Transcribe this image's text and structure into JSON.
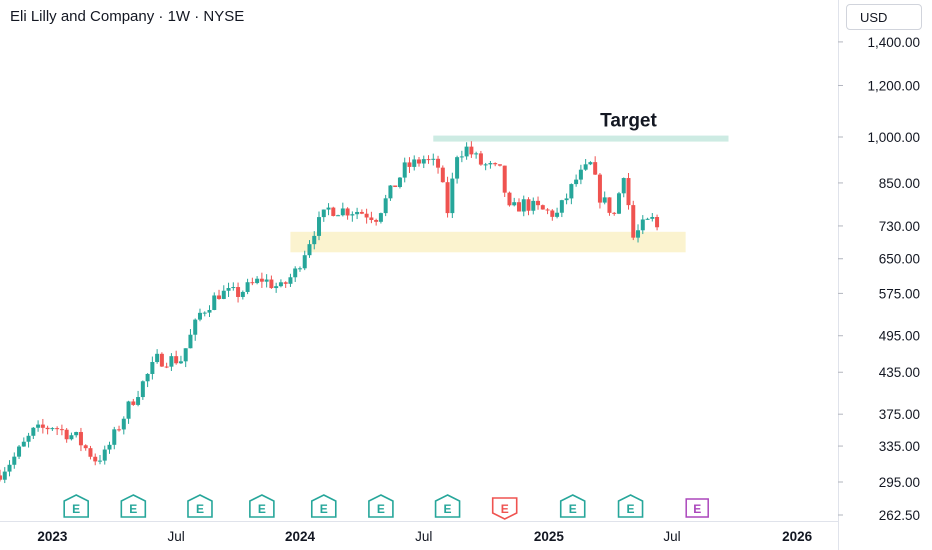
{
  "header": {
    "title": "Eli Lilly and Company · 1W · NYSE",
    "currency": "USD"
  },
  "annotation": {
    "target_label": "Target"
  },
  "colors": {
    "up": "#26a69a",
    "down": "#ef5350",
    "target_zone": "#cdebe3",
    "support_zone": "#fbf3cf",
    "earnings_up": "#26a69a",
    "earnings_down": "#ef5350",
    "earnings_future": "#ab47bc"
  },
  "chart_data": {
    "type": "candlestick",
    "title": "Eli Lilly and Company · 1W · NYSE",
    "y_scale": "log",
    "ylim": [
      250,
      1600
    ],
    "y_ticks": [
      1400,
      1200,
      1000,
      850,
      730,
      650,
      575,
      495,
      435,
      375,
      335,
      295,
      262.5
    ],
    "y_tick_labels": [
      "1,400.00",
      "1,200.00",
      "1,000.00",
      "850.00",
      "730.00",
      "650.00",
      "575.00",
      "495.00",
      "435.00",
      "375.00",
      "335.00",
      "295.00",
      "262.50"
    ],
    "x_ticks": [
      "2023",
      "Jul",
      "2024",
      "Jul",
      "2025",
      "Jul",
      "2026"
    ],
    "x_range": [
      "2022-10-17",
      "2026-03-02"
    ],
    "zones": [
      {
        "name": "target",
        "label": "Target",
        "from": "2024-07-15",
        "to": "2025-09-22",
        "low": 985,
        "high": 1005
      },
      {
        "name": "support",
        "from": "2023-12-18",
        "to": "2025-07-21",
        "low": 665,
        "high": 715
      }
    ],
    "earnings": [
      {
        "date": "2023-02-06",
        "label": "E",
        "result": "beat"
      },
      {
        "date": "2023-05-01",
        "label": "E",
        "result": "beat"
      },
      {
        "date": "2023-08-07",
        "label": "E",
        "result": "beat"
      },
      {
        "date": "2023-11-06",
        "label": "E",
        "result": "beat"
      },
      {
        "date": "2024-02-05",
        "label": "E",
        "result": "beat"
      },
      {
        "date": "2024-04-29",
        "label": "E",
        "result": "beat"
      },
      {
        "date": "2024-08-05",
        "label": "E",
        "result": "beat"
      },
      {
        "date": "2024-10-28",
        "label": "E",
        "result": "miss"
      },
      {
        "date": "2025-02-05",
        "label": "E",
        "result": "beat"
      },
      {
        "date": "2025-05-01",
        "label": "E",
        "result": "beat"
      },
      {
        "date": "2025-08-07",
        "label": "E",
        "result": "upcoming"
      }
    ],
    "weekly_close_path": [
      [
        "2022-10-17",
        305
      ],
      [
        "2022-11-07",
        322
      ],
      [
        "2022-12-05",
        352
      ],
      [
        "2023-01-02",
        360
      ],
      [
        "2023-02-06",
        345
      ],
      [
        "2023-03-06",
        320
      ],
      [
        "2023-03-20",
        325
      ],
      [
        "2023-04-24",
        385
      ],
      [
        "2023-06-05",
        455
      ],
      [
        "2023-07-10",
        455
      ],
      [
        "2023-08-07",
        535
      ],
      [
        "2023-09-04",
        575
      ],
      [
        "2023-10-02",
        575
      ],
      [
        "2023-11-06",
        605
      ],
      [
        "2023-12-04",
        585
      ],
      [
        "2023-12-25",
        620
      ],
      [
        "2024-01-22",
        720
      ],
      [
        "2024-02-12",
        775
      ],
      [
        "2024-03-25",
        770
      ],
      [
        "2024-04-22",
        755
      ],
      [
        "2024-06-03",
        895
      ],
      [
        "2024-07-01",
        925
      ],
      [
        "2024-07-22",
        900
      ],
      [
        "2024-08-05",
        770
      ],
      [
        "2024-08-19",
        945
      ],
      [
        "2024-09-02",
        960
      ],
      [
        "2024-09-23",
        910
      ],
      [
        "2024-10-21",
        885
      ],
      [
        "2024-11-04",
        770
      ],
      [
        "2024-11-25",
        790
      ],
      [
        "2024-12-23",
        770
      ],
      [
        "2025-01-13",
        760
      ],
      [
        "2025-02-10",
        860
      ],
      [
        "2025-03-03",
        905
      ],
      [
        "2025-03-17",
        810
      ],
      [
        "2025-04-07",
        760
      ],
      [
        "2025-04-21",
        885
      ],
      [
        "2025-05-05",
        700
      ],
      [
        "2025-05-19",
        730
      ],
      [
        "2025-06-02",
        745
      ],
      [
        "2025-06-09",
        725
      ]
    ]
  }
}
